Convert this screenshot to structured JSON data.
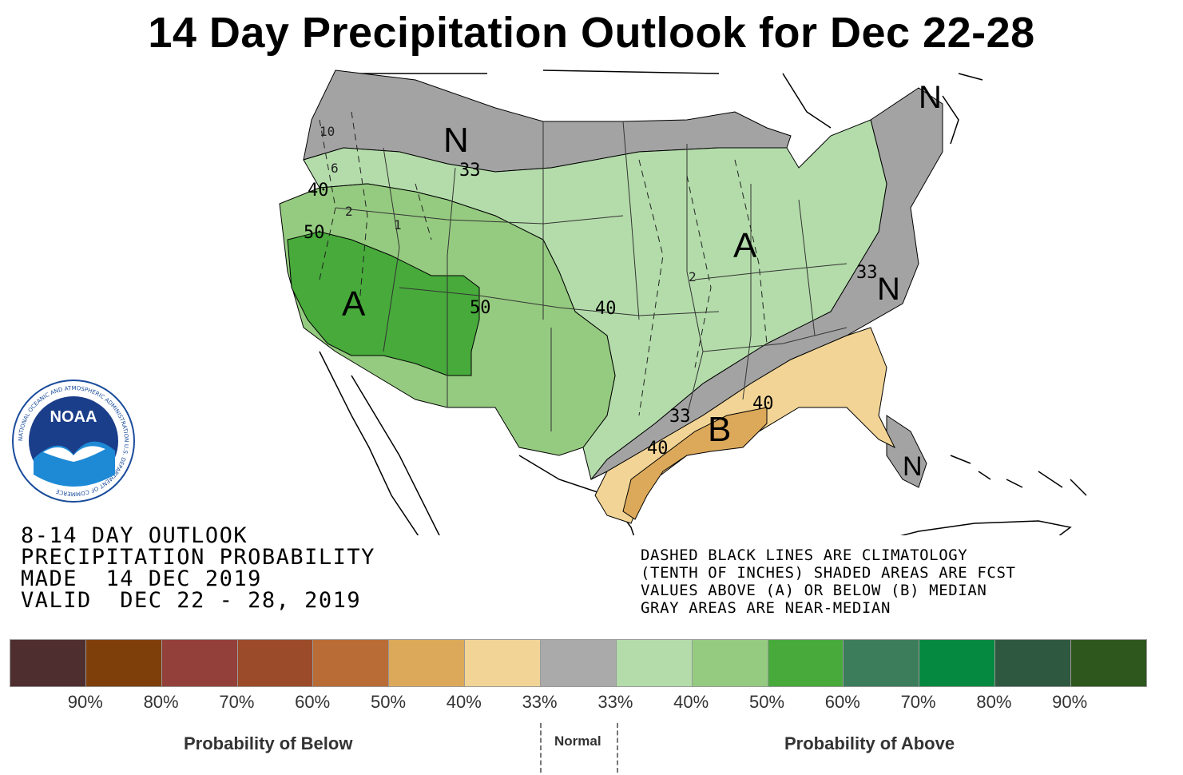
{
  "title": "14 Day Precipitation Outlook for Dec 22-28",
  "map": {
    "category_labels": [
      {
        "id": "A-west",
        "text": "A"
      },
      {
        "id": "A-midwest",
        "text": "A"
      },
      {
        "id": "B-gulf",
        "text": "B"
      },
      {
        "id": "N-northwest",
        "text": "N"
      },
      {
        "id": "N-east",
        "text": "N"
      },
      {
        "id": "N-northeast",
        "text": "N"
      },
      {
        "id": "N-florida",
        "text": "N"
      }
    ],
    "contour_labels": [
      {
        "id": "c-50-west",
        "text": "50"
      },
      {
        "id": "c-40-west",
        "text": "40"
      },
      {
        "id": "c-50-central",
        "text": "50"
      },
      {
        "id": "c-40-central",
        "text": "40"
      },
      {
        "id": "c-33-north",
        "text": "33"
      },
      {
        "id": "c-33-east",
        "text": "33"
      },
      {
        "id": "c-33-gulf",
        "text": "33"
      },
      {
        "id": "c-40-gulf",
        "text": "40"
      },
      {
        "id": "c-40-texas",
        "text": "40"
      }
    ],
    "climatology_labels": [
      {
        "id": "clim-10",
        "text": "10"
      },
      {
        "id": "clim-6",
        "text": "6"
      },
      {
        "id": "clim-2a",
        "text": "2"
      },
      {
        "id": "clim-1",
        "text": "1"
      },
      {
        "id": "clim-2b",
        "text": "2"
      }
    ],
    "zone_colors": {
      "near_median": "#a3a3a3",
      "above_33": "#b3dcaa",
      "above_40": "#95cb80",
      "above_50": "#47aa3b",
      "below_33": "#f2d596",
      "below_40": "#dca95a"
    }
  },
  "noaa_logo": {
    "text": "NOAA",
    "ring_text": "NATIONAL OCEANIC AND ATMOSPHERIC ADMINISTRATION U.S. DEPARTMENT OF COMMERCE"
  },
  "outlook": {
    "line1": "8-14 DAY OUTLOOK",
    "line2": "PRECIPITATION PROBABILITY",
    "line3": "MADE  14 DEC 2019",
    "line4": "VALID  DEC 22 - 28, 2019"
  },
  "legend_text": {
    "line1": "DASHED BLACK LINES ARE CLIMATOLOGY",
    "line2": "(TENTH OF INCHES) SHADED AREAS ARE FCST",
    "line3": "VALUES ABOVE (A) OR BELOW (B) MEDIAN",
    "line4": "GRAY AREAS ARE NEAR-MEDIAN"
  },
  "colorbar": {
    "colors": [
      "#4e2e2e",
      "#7f3f0a",
      "#94403a",
      "#9c4b2a",
      "#b96c35",
      "#dca95a",
      "#f2d596",
      "#aaaaaa",
      "#b3dcaa",
      "#95cb80",
      "#47aa3b",
      "#3c7d5b",
      "#05883f",
      "#2e5840",
      "#2e571d"
    ],
    "ticks": [
      "90%",
      "80%",
      "70%",
      "60%",
      "50%",
      "40%",
      "33%",
      "33%",
      "40%",
      "50%",
      "60%",
      "70%",
      "80%",
      "90%"
    ],
    "caption_below": "Probability of Below",
    "caption_normal": "Normal",
    "caption_above": "Probability of Above"
  }
}
